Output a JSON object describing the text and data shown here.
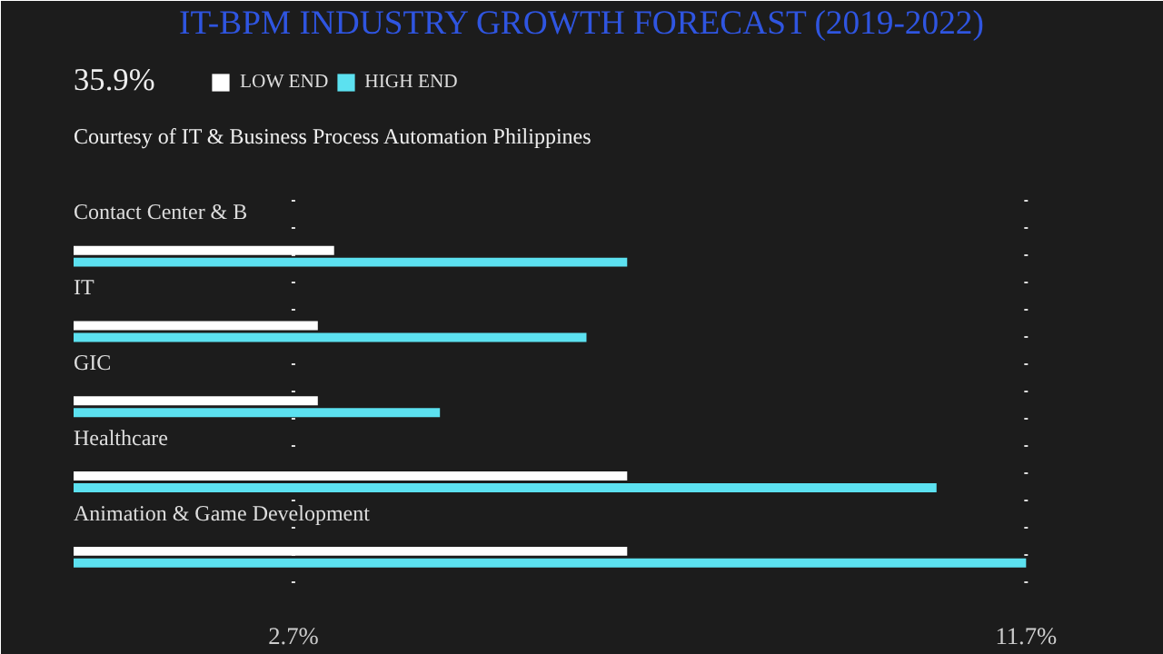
{
  "chart_data": {
    "type": "bar",
    "orientation": "horizontal",
    "title": "IT-BPM INDUSTRY GROWTH FORECAST (2019-2022)",
    "subtitle": "Courtesy of IT & Business Process Automation Philippines",
    "annotations": [
      "35.9%"
    ],
    "categories": [
      "Contact Center & B",
      "IT",
      "GIC",
      "Healthcare",
      "Animation & Game Development"
    ],
    "series": [
      {
        "name": "LOW END",
        "color": "#ffffff",
        "values": [
          3.2,
          3.0,
          3.0,
          6.8,
          6.8
        ]
      },
      {
        "name": "HIGH END",
        "color": "#5ce1f0",
        "values": [
          6.8,
          6.3,
          4.5,
          10.6,
          11.7
        ]
      }
    ],
    "xlim": [
      0,
      12.5
    ],
    "xticks": [
      {
        "value": 2.7,
        "label": "2.7%"
      },
      {
        "value": 11.7,
        "label": "11.7%"
      }
    ],
    "grid": "x",
    "legend": "top left"
  }
}
